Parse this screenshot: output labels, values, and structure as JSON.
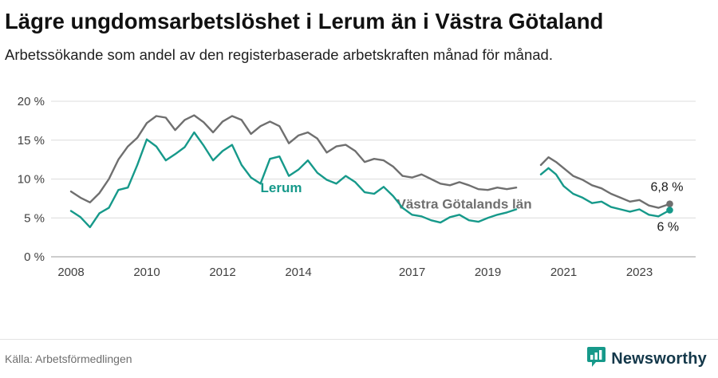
{
  "header": {
    "title": "Lägre ungdomsarbetslöshet i Lerum än i Västra Götaland",
    "subtitle": "Arbetssökande som andel av den registerbaserade arbetskraften månad för månad."
  },
  "footer": {
    "source": "Källa: Arbetsförmedlingen",
    "brand": "Newsworthy"
  },
  "colors": {
    "teal": "#16998a",
    "gray": "#6f6f6f",
    "gridline": "#dcdcdc",
    "axis": "#9a9a9a",
    "tick_text": "#3f3f3f",
    "value_label": "#1a1a1a",
    "brand_navy": "#14384a"
  },
  "chart_data": {
    "type": "line",
    "title": "Lägre ungdomsarbetslöshet i Lerum än i Västra Götaland",
    "xlabel": "",
    "ylabel": "",
    "ylim": [
      0,
      20
    ],
    "yticks": [
      0,
      5,
      10,
      15,
      20
    ],
    "ytick_labels": [
      "0 %",
      "5 %",
      "10 %",
      "15 %",
      "20 %"
    ],
    "xticks": [
      2008,
      2010,
      2012,
      2014,
      2017,
      2019,
      2021,
      2023
    ],
    "grid": "horizontal",
    "legend": "inline-series-labels",
    "note": "values are monthly percentages, estimated from plot; null = break in series around 2020",
    "series": [
      {
        "name": "Västra Götalands län",
        "color": "#6f6f6f",
        "end_label": "6,8 %",
        "end_label_offset": [
          -24,
          -16
        ],
        "label_pos": {
          "x": 2016.6,
          "y": 6.2
        },
        "points": [
          [
            2008,
            8.4
          ],
          [
            2008.25,
            7.6
          ],
          [
            2008.5,
            7.0
          ],
          [
            2008.75,
            8.2
          ],
          [
            2009,
            10.0
          ],
          [
            2009.25,
            12.5
          ],
          [
            2009.5,
            14.2
          ],
          [
            2009.75,
            15.3
          ],
          [
            2010,
            17.2
          ],
          [
            2010.25,
            18.1
          ],
          [
            2010.5,
            17.9
          ],
          [
            2010.75,
            16.3
          ],
          [
            2011,
            17.6
          ],
          [
            2011.25,
            18.2
          ],
          [
            2011.5,
            17.3
          ],
          [
            2011.75,
            16.0
          ],
          [
            2012,
            17.4
          ],
          [
            2012.25,
            18.1
          ],
          [
            2012.5,
            17.6
          ],
          [
            2012.75,
            15.8
          ],
          [
            2013,
            16.8
          ],
          [
            2013.25,
            17.4
          ],
          [
            2013.5,
            16.8
          ],
          [
            2013.75,
            14.6
          ],
          [
            2014,
            15.6
          ],
          [
            2014.25,
            16.0
          ],
          [
            2014.5,
            15.2
          ],
          [
            2014.75,
            13.4
          ],
          [
            2015,
            14.2
          ],
          [
            2015.25,
            14.4
          ],
          [
            2015.5,
            13.6
          ],
          [
            2015.75,
            12.2
          ],
          [
            2016,
            12.6
          ],
          [
            2016.25,
            12.4
          ],
          [
            2016.5,
            11.6
          ],
          [
            2016.75,
            10.4
          ],
          [
            2017,
            10.2
          ],
          [
            2017.25,
            10.6
          ],
          [
            2017.5,
            10.0
          ],
          [
            2017.75,
            9.4
          ],
          [
            2018,
            9.2
          ],
          [
            2018.25,
            9.6
          ],
          [
            2018.5,
            9.2
          ],
          [
            2018.75,
            8.7
          ],
          [
            2019,
            8.6
          ],
          [
            2019.25,
            8.9
          ],
          [
            2019.5,
            8.7
          ],
          [
            2019.75,
            8.9
          ],
          null,
          [
            2020.4,
            11.8
          ],
          [
            2020.6,
            12.8
          ],
          [
            2020.8,
            12.2
          ],
          [
            2021,
            11.4
          ],
          [
            2021.25,
            10.4
          ],
          [
            2021.5,
            9.9
          ],
          [
            2021.75,
            9.2
          ],
          [
            2022,
            8.8
          ],
          [
            2022.25,
            8.1
          ],
          [
            2022.5,
            7.6
          ],
          [
            2022.75,
            7.1
          ],
          [
            2023,
            7.3
          ],
          [
            2023.25,
            6.6
          ],
          [
            2023.5,
            6.3
          ],
          [
            2023.8,
            6.8
          ]
        ]
      },
      {
        "name": "Lerum",
        "color": "#16998a",
        "end_label": "6 %",
        "end_label_offset": [
          -16,
          26
        ],
        "label_pos": {
          "x": 2013.0,
          "y": 8.3
        },
        "points": [
          [
            2008,
            5.9
          ],
          [
            2008.25,
            5.1
          ],
          [
            2008.5,
            3.8
          ],
          [
            2008.75,
            5.6
          ],
          [
            2009,
            6.3
          ],
          [
            2009.25,
            8.6
          ],
          [
            2009.5,
            8.9
          ],
          [
            2009.75,
            11.8
          ],
          [
            2010,
            15.1
          ],
          [
            2010.25,
            14.2
          ],
          [
            2010.5,
            12.4
          ],
          [
            2010.75,
            13.2
          ],
          [
            2011,
            14.1
          ],
          [
            2011.25,
            16.0
          ],
          [
            2011.5,
            14.3
          ],
          [
            2011.75,
            12.4
          ],
          [
            2012,
            13.6
          ],
          [
            2012.25,
            14.4
          ],
          [
            2012.5,
            11.8
          ],
          [
            2012.75,
            10.2
          ],
          [
            2013,
            9.4
          ],
          [
            2013.25,
            12.6
          ],
          [
            2013.5,
            12.9
          ],
          [
            2013.75,
            10.4
          ],
          [
            2014,
            11.2
          ],
          [
            2014.25,
            12.4
          ],
          [
            2014.5,
            10.8
          ],
          [
            2014.75,
            9.9
          ],
          [
            2015,
            9.4
          ],
          [
            2015.25,
            10.4
          ],
          [
            2015.5,
            9.6
          ],
          [
            2015.75,
            8.3
          ],
          [
            2016,
            8.1
          ],
          [
            2016.25,
            9.0
          ],
          [
            2016.5,
            7.8
          ],
          [
            2016.75,
            6.3
          ],
          [
            2017,
            5.4
          ],
          [
            2017.25,
            5.2
          ],
          [
            2017.5,
            4.7
          ],
          [
            2017.75,
            4.4
          ],
          [
            2018,
            5.1
          ],
          [
            2018.25,
            5.4
          ],
          [
            2018.5,
            4.7
          ],
          [
            2018.75,
            4.5
          ],
          [
            2019,
            5.0
          ],
          [
            2019.25,
            5.4
          ],
          [
            2019.5,
            5.7
          ],
          [
            2019.75,
            6.1
          ],
          null,
          [
            2020.4,
            10.6
          ],
          [
            2020.6,
            11.4
          ],
          [
            2020.8,
            10.6
          ],
          [
            2021,
            9.1
          ],
          [
            2021.25,
            8.1
          ],
          [
            2021.5,
            7.6
          ],
          [
            2021.75,
            6.9
          ],
          [
            2022,
            7.1
          ],
          [
            2022.25,
            6.4
          ],
          [
            2022.5,
            6.1
          ],
          [
            2022.75,
            5.8
          ],
          [
            2023,
            6.1
          ],
          [
            2023.25,
            5.4
          ],
          [
            2023.5,
            5.2
          ],
          [
            2023.8,
            6.0
          ]
        ]
      }
    ]
  }
}
